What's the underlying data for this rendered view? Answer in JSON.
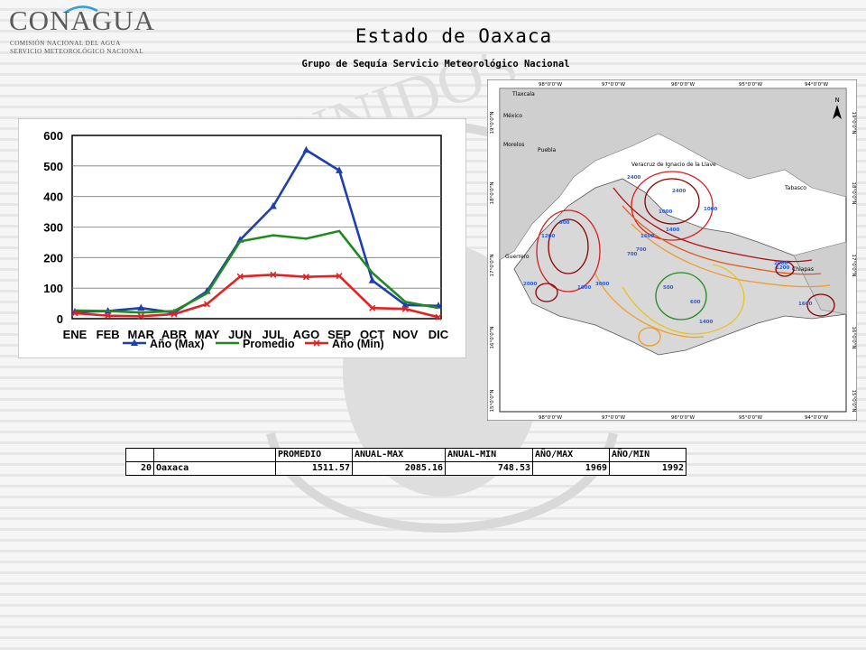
{
  "header": {
    "logo": {
      "name": "CONAGUA",
      "line1": "COMISIÓN NACIONAL DEL AGUA",
      "line2": "SERVICIO METEOROLÓGICO NACIONAL"
    },
    "title": "Estado de Oaxaca",
    "subtitle": "Grupo de Sequía Servicio Meteorológico Nacional"
  },
  "chart_data": {
    "type": "line",
    "title": "",
    "xlabel": "",
    "ylabel": "",
    "categories": [
      "ENE",
      "FEB",
      "MAR",
      "ABR",
      "MAY",
      "JUN",
      "JUL",
      "AGO",
      "SEP",
      "OCT",
      "NOV",
      "DIC"
    ],
    "ylim": [
      0,
      600
    ],
    "yticks": [
      0,
      100,
      200,
      300,
      400,
      500,
      600
    ],
    "grid": true,
    "legend": "bottom",
    "series": [
      {
        "name": "Año (Max)",
        "color": "#1f3fae",
        "marker": "triangle",
        "values": [
          22,
          25,
          35,
          20,
          90,
          258,
          368,
          552,
          485,
          125,
          45,
          42
        ]
      },
      {
        "name": "Promedio",
        "color": "#1f8a1f",
        "marker": "none",
        "values": [
          27,
          25,
          20,
          25,
          83,
          253,
          273,
          262,
          287,
          150,
          55,
          35
        ]
      },
      {
        "name": "Año (Min)",
        "color": "#e22222",
        "marker": "x",
        "values": [
          18,
          10,
          8,
          15,
          48,
          138,
          144,
          137,
          140,
          35,
          32,
          5
        ]
      }
    ]
  },
  "map": {
    "top_ticks": [
      "98°0'0\"W",
      "97°0'0\"W",
      "96°0'0\"W",
      "95°0'0\"W",
      "94°0'0\"W"
    ],
    "bottom_ticks": [
      "98°0'0\"W",
      "97°0'0\"W",
      "96°0'0\"W",
      "95°0'0\"W",
      "94°0'0\"W"
    ],
    "left_ticks": [
      "19°0'0\"N",
      "18°0'0\"N",
      "17°0'0\"N",
      "16°0'0\"N",
      "15°0'0\"N"
    ],
    "right_ticks": [
      "19°0'0\"N",
      "18°0'0\"N",
      "17°0'0\"N",
      "16°0'0\"N",
      "15°0'0\"N"
    ],
    "places": [
      "Tlaxcala",
      "México",
      "Morelos",
      "Puebla",
      "Veracruz de Ignacio de la Llave",
      "Tabasco",
      "Guerrero",
      "Chiapas"
    ],
    "north_label": "N",
    "contour_labels": [
      "2400",
      "1000",
      "1400",
      "1600",
      "1200",
      "800",
      "700",
      "500",
      "600",
      "2000",
      "1800",
      "3000",
      "1400",
      "2400",
      "1000",
      "700",
      "1200",
      "2000",
      "1600"
    ]
  },
  "table": {
    "headers": [
      "",
      "",
      "PROMEDIO",
      "ANUAL-MAX",
      "ANUAL-MIN",
      "AÑO/MAX",
      "AÑO/MIN"
    ],
    "rows": [
      [
        "20",
        "Oaxaca",
        "1511.57",
        "2085.16",
        "748.53",
        "1969",
        "1992"
      ]
    ]
  },
  "colors": {
    "series_max": "#1f3fae",
    "series_avg": "#1f8a1f",
    "series_min": "#e22222",
    "map_sea": "#ffffff",
    "map_land": "#c8c8c8"
  }
}
